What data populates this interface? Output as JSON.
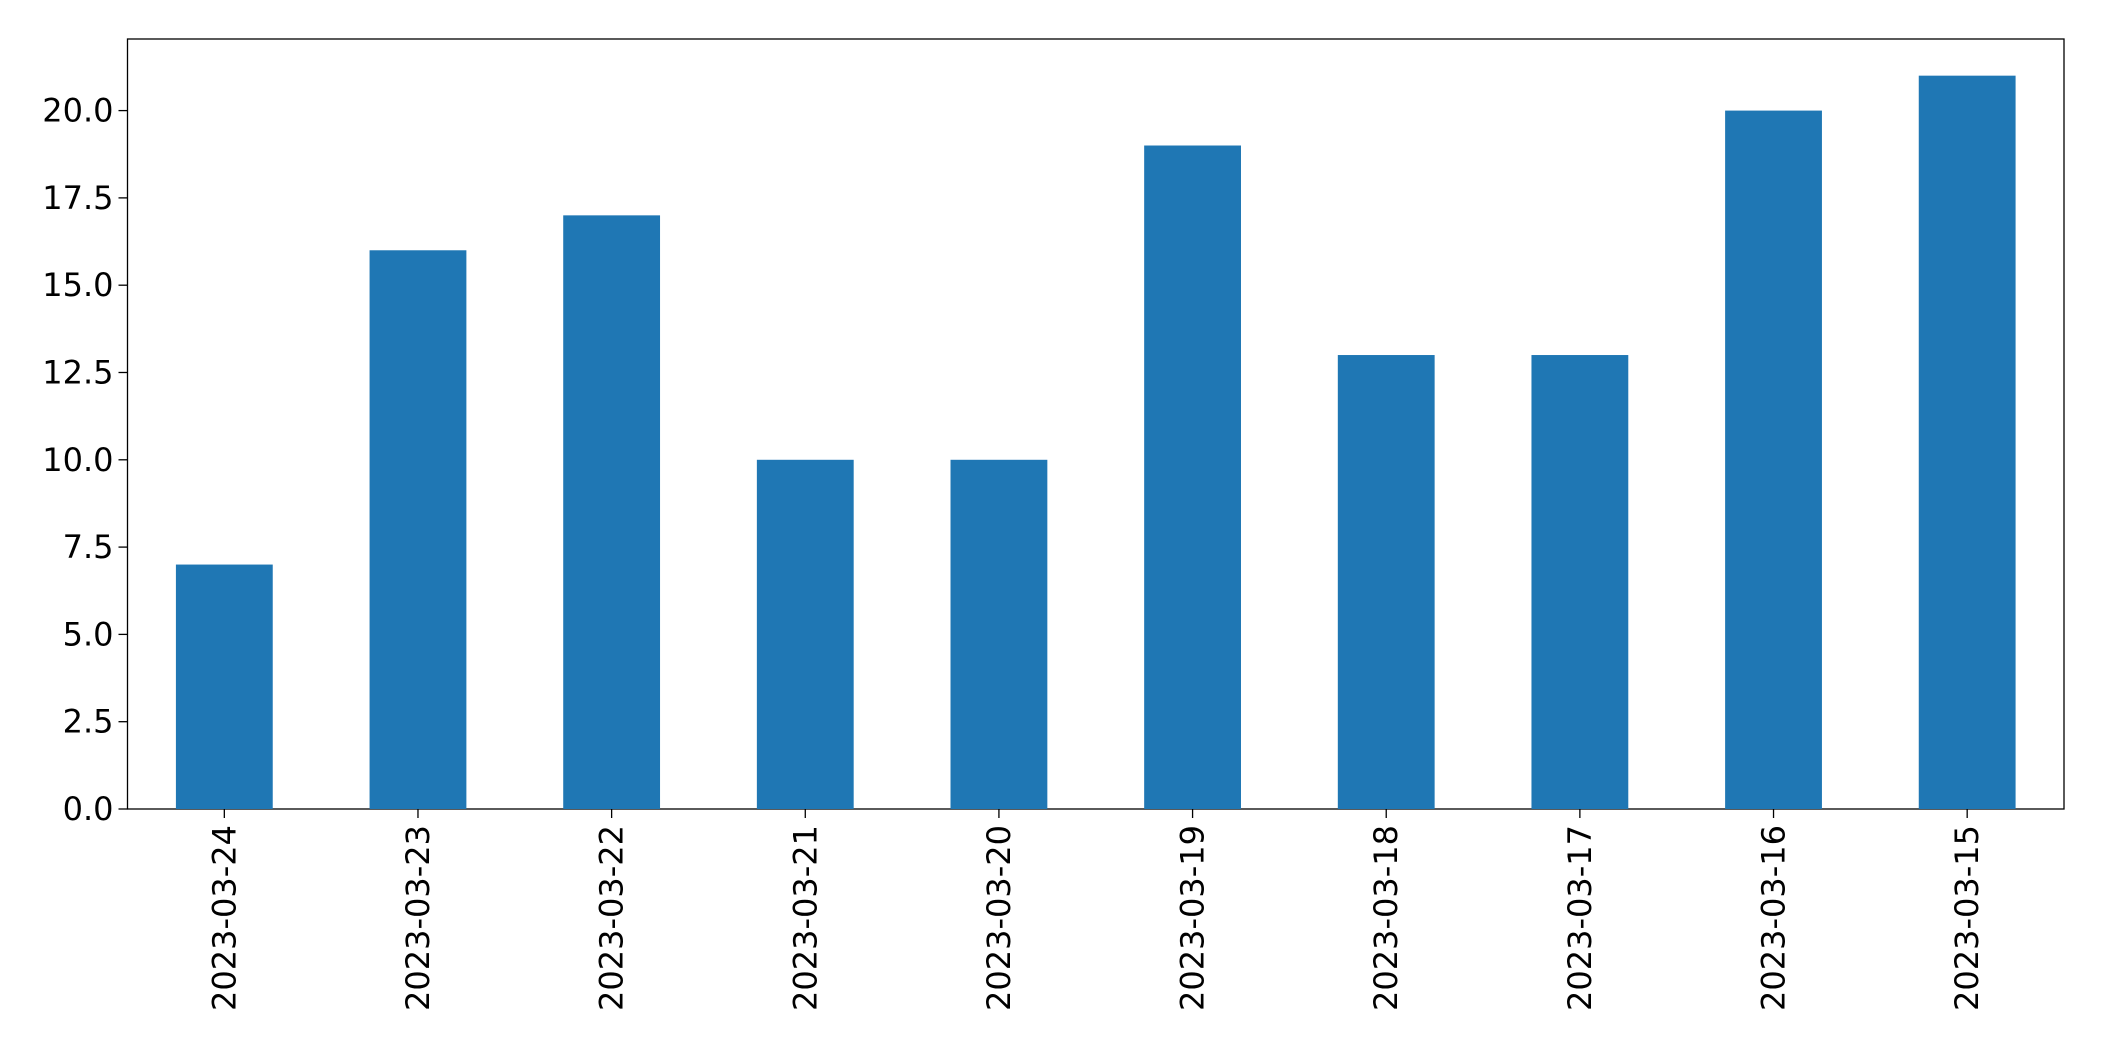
{
  "chart_data": {
    "type": "bar",
    "categories": [
      "2023-03-24",
      "2023-03-23",
      "2023-03-22",
      "2023-03-21",
      "2023-03-20",
      "2023-03-19",
      "2023-03-18",
      "2023-03-17",
      "2023-03-16",
      "2023-03-15"
    ],
    "values": [
      7,
      16,
      17,
      10,
      10,
      19,
      13,
      13,
      20,
      21
    ],
    "color": "#1f77b4",
    "ylim": [
      0,
      22.05
    ],
    "yticks": [
      {
        "value": 0,
        "label": "0.0"
      },
      2.5,
      {
        "value": 5,
        "label": "5.0"
      },
      7.5,
      {
        "value": 10,
        "label": "10.0"
      },
      12.5,
      {
        "value": 15,
        "label": "15.0"
      },
      17.5,
      {
        "value": 20,
        "label": "20.0"
      }
    ],
    "grid": false
  }
}
